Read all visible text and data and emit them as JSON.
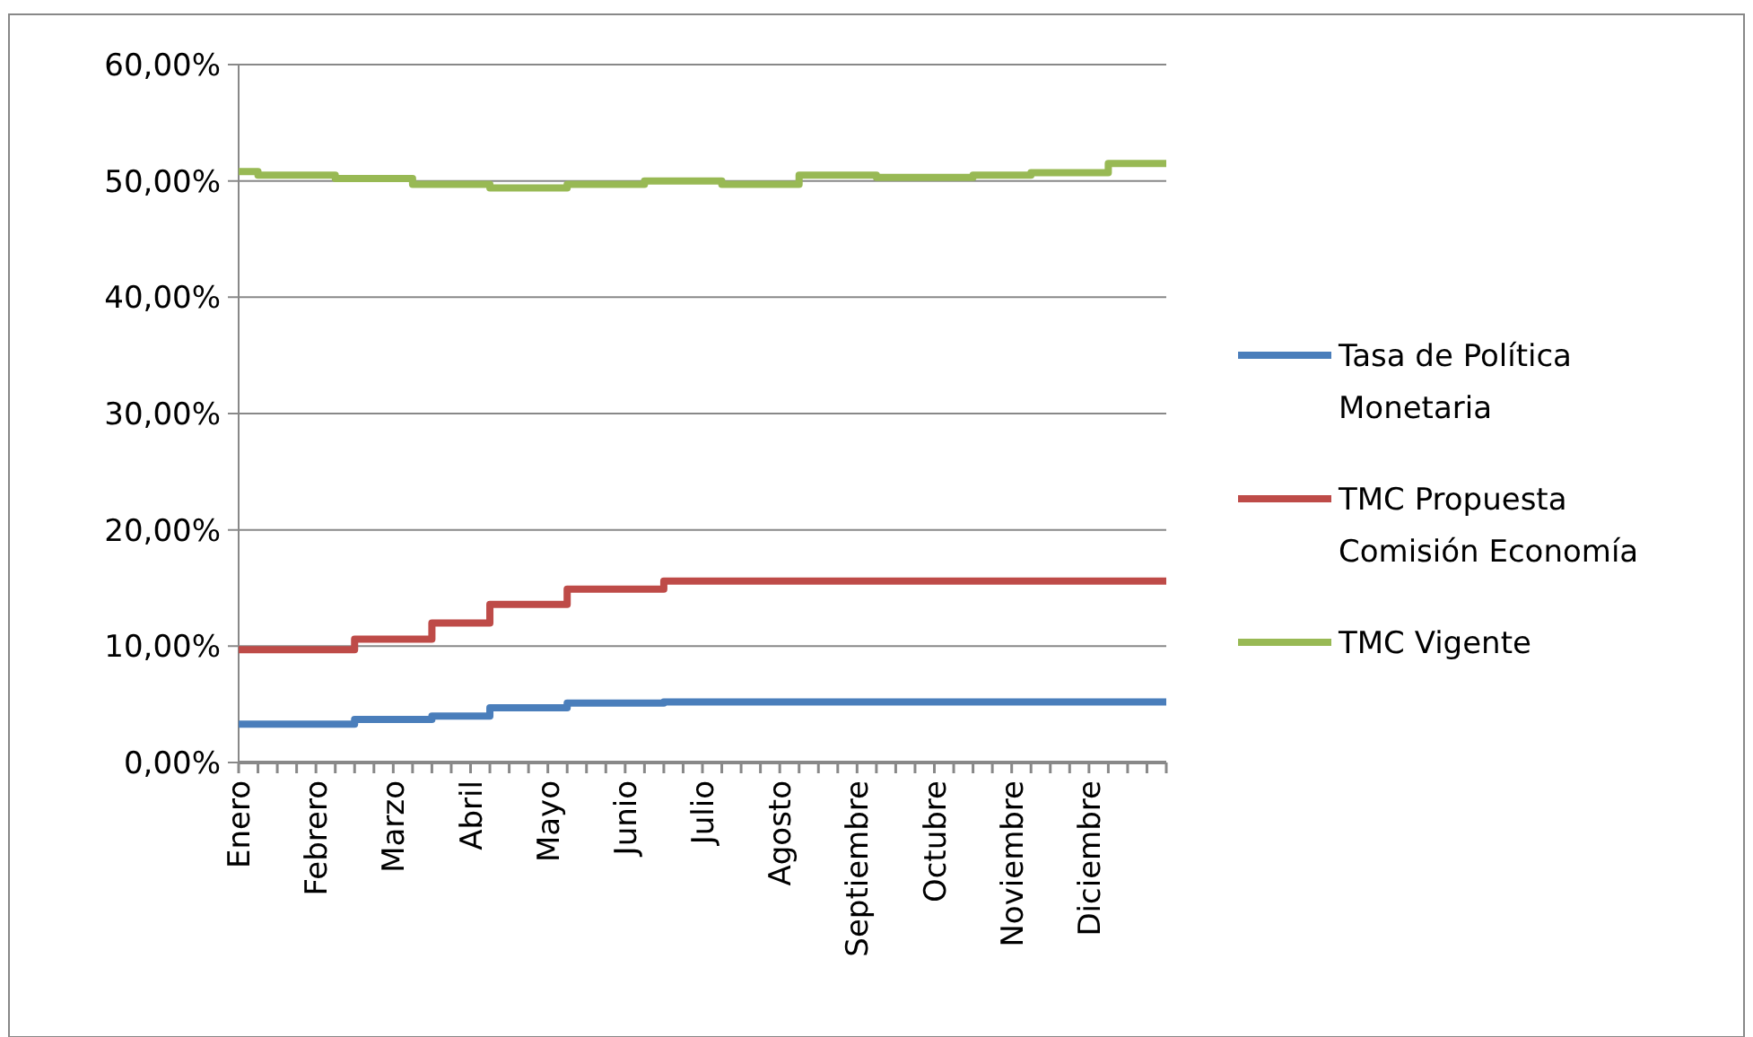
{
  "chart_data": {
    "type": "step",
    "categories": [
      "Enero",
      null,
      null,
      null,
      "Febrero",
      null,
      null,
      null,
      "Marzo",
      null,
      null,
      null,
      "Abril",
      null,
      null,
      null,
      "Mayo",
      null,
      null,
      null,
      "Junio",
      null,
      null,
      null,
      "Julio",
      null,
      null,
      null,
      "Agosto",
      null,
      null,
      null,
      "Septiembre",
      null,
      null,
      null,
      "Octubre",
      null,
      null,
      null,
      "Noviembre",
      null,
      null,
      null,
      "Diciembre",
      null,
      null,
      null,
      null
    ],
    "ylim": [
      0,
      60
    ],
    "yticks": [
      {
        "value": 0,
        "label": "0,00%"
      },
      {
        "value": 10,
        "label": "10,00%"
      },
      {
        "value": 20,
        "label": "20,00%"
      },
      {
        "value": 30,
        "label": "30,00%"
      },
      {
        "value": 40,
        "label": "40,00%"
      },
      {
        "value": 50,
        "label": "50,00%"
      },
      {
        "value": 60,
        "label": "60,00%"
      }
    ],
    "grid": "y",
    "legend": "right",
    "marker": "none",
    "line_style": "solid",
    "series": [
      {
        "name": "Tasa de Política Monetaria",
        "color": "#4a7ebb",
        "values": [
          3.3,
          3.3,
          3.3,
          3.3,
          3.3,
          3.3,
          3.7,
          3.7,
          3.7,
          3.7,
          4.0,
          4.0,
          4.0,
          4.7,
          4.7,
          4.7,
          4.7,
          5.1,
          5.1,
          5.1,
          5.1,
          5.1,
          5.2,
          5.2,
          5.2,
          5.2,
          5.2,
          5.2,
          5.2,
          5.2,
          5.2,
          5.2,
          5.2,
          5.2,
          5.2,
          5.2,
          5.2,
          5.2,
          5.2,
          5.2,
          5.2,
          5.2,
          5.2,
          5.2,
          5.2,
          5.2,
          5.2,
          5.2,
          5.2
        ]
      },
      {
        "name": "TMC Propuesta Comisión Economía",
        "color": "#be4b48",
        "values": [
          9.7,
          9.7,
          9.7,
          9.7,
          9.7,
          9.7,
          10.6,
          10.6,
          10.6,
          10.6,
          12.0,
          12.0,
          12.0,
          13.6,
          13.6,
          13.6,
          13.6,
          14.9,
          14.9,
          14.9,
          14.9,
          14.9,
          15.6,
          15.6,
          15.6,
          15.6,
          15.6,
          15.6,
          15.6,
          15.6,
          15.6,
          15.6,
          15.6,
          15.6,
          15.6,
          15.6,
          15.6,
          15.6,
          15.6,
          15.6,
          15.6,
          15.6,
          15.6,
          15.6,
          15.6,
          15.6,
          15.6,
          15.6,
          15.6
        ]
      },
      {
        "name": "TMC Vigente",
        "color": "#98b954",
        "values": [
          50.8,
          50.5,
          50.5,
          50.5,
          50.5,
          50.2,
          50.2,
          50.2,
          50.2,
          49.7,
          49.7,
          49.7,
          49.7,
          49.4,
          49.4,
          49.4,
          49.4,
          49.7,
          49.7,
          49.7,
          49.7,
          50.0,
          50.0,
          50.0,
          50.0,
          49.7,
          49.7,
          49.7,
          49.7,
          50.5,
          50.5,
          50.5,
          50.5,
          50.3,
          50.3,
          50.3,
          50.3,
          50.3,
          50.5,
          50.5,
          50.5,
          50.7,
          50.7,
          50.7,
          50.7,
          51.5,
          51.5,
          51.5,
          51.5
        ]
      }
    ]
  }
}
